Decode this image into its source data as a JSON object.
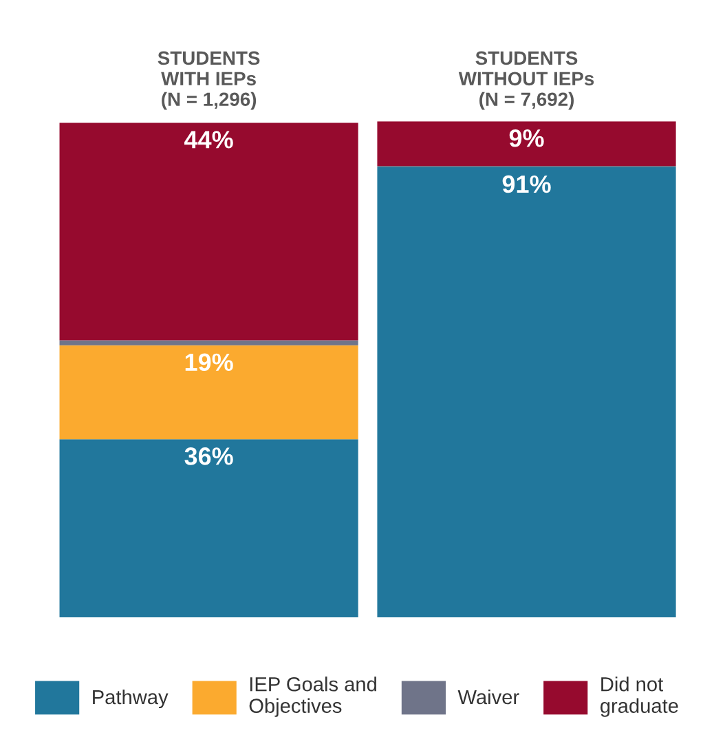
{
  "chart_data": {
    "type": "bar",
    "stacked": true,
    "categories": [
      "STUDENTS\nWITH IEPs\n(N = 1,296)",
      "STUDENTS\nWITHOUT IEPs\n(N = 7,692)"
    ],
    "series": [
      {
        "name": "Pathway",
        "color": "#21779c",
        "values": [
          36,
          91
        ],
        "value_labels": [
          "36%",
          "91%"
        ]
      },
      {
        "name": "IEP Goals and\nObjectives",
        "color": "#fbaa2f",
        "values": [
          19,
          0
        ],
        "value_labels": [
          "19%",
          null
        ]
      },
      {
        "name": "Waiver",
        "color": "#6f7489",
        "values": [
          1,
          0.3
        ],
        "value_labels": [
          null,
          null
        ]
      },
      {
        "name": "Did not\ngraduate",
        "color": "#960a2e",
        "values": [
          44,
          9
        ],
        "value_labels": [
          "44%",
          "9%"
        ]
      }
    ],
    "legend": "bottom",
    "grid": false
  }
}
